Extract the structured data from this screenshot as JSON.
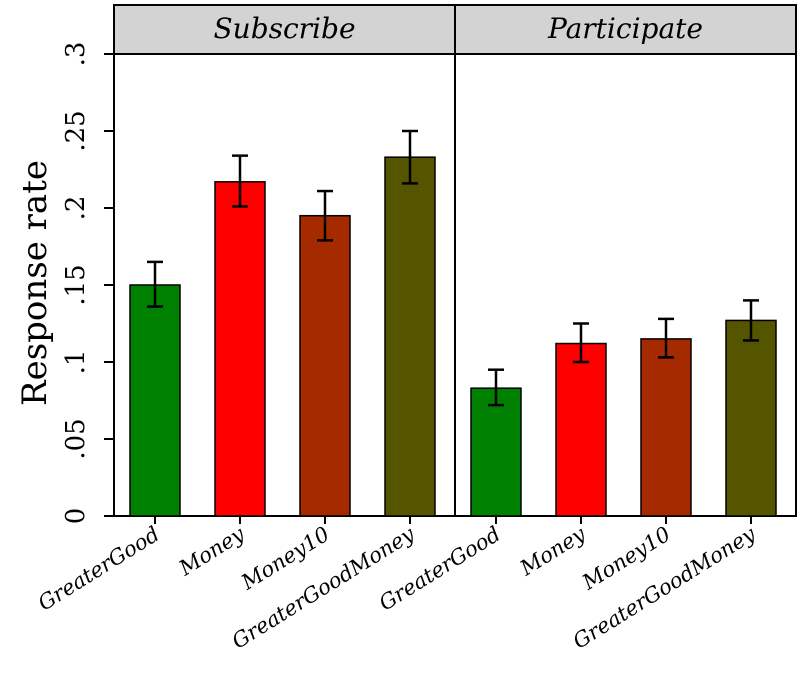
{
  "chart_data": {
    "type": "bar",
    "ylabel": "Response rate",
    "ylim": [
      0,
      0.3
    ],
    "yticks": [
      {
        "value": 0,
        "label": "0"
      },
      {
        "value": 0.05,
        "label": ".05"
      },
      {
        "value": 0.1,
        "label": ".1"
      },
      {
        "value": 0.15,
        "label": ".15"
      },
      {
        "value": 0.2,
        "label": ".2"
      },
      {
        "value": 0.25,
        "label": ".25"
      },
      {
        "value": 0.3,
        "label": ".3"
      }
    ],
    "categories": [
      "GreaterGood",
      "Money",
      "Money10",
      "GreaterGoodMoney"
    ],
    "colors": [
      "#008000",
      "#ff0000",
      "#a52a00",
      "#555500"
    ],
    "panels": [
      {
        "title": "Subscribe",
        "values": [
          0.15,
          0.217,
          0.195,
          0.233
        ],
        "ci_low": [
          0.136,
          0.201,
          0.179,
          0.216
        ],
        "ci_high": [
          0.165,
          0.234,
          0.211,
          0.25
        ]
      },
      {
        "title": "Participate",
        "values": [
          0.083,
          0.112,
          0.115,
          0.127
        ],
        "ci_low": [
          0.072,
          0.1,
          0.103,
          0.114
        ],
        "ci_high": [
          0.095,
          0.125,
          0.128,
          0.14
        ]
      }
    ],
    "grid": false,
    "legend": "none"
  }
}
